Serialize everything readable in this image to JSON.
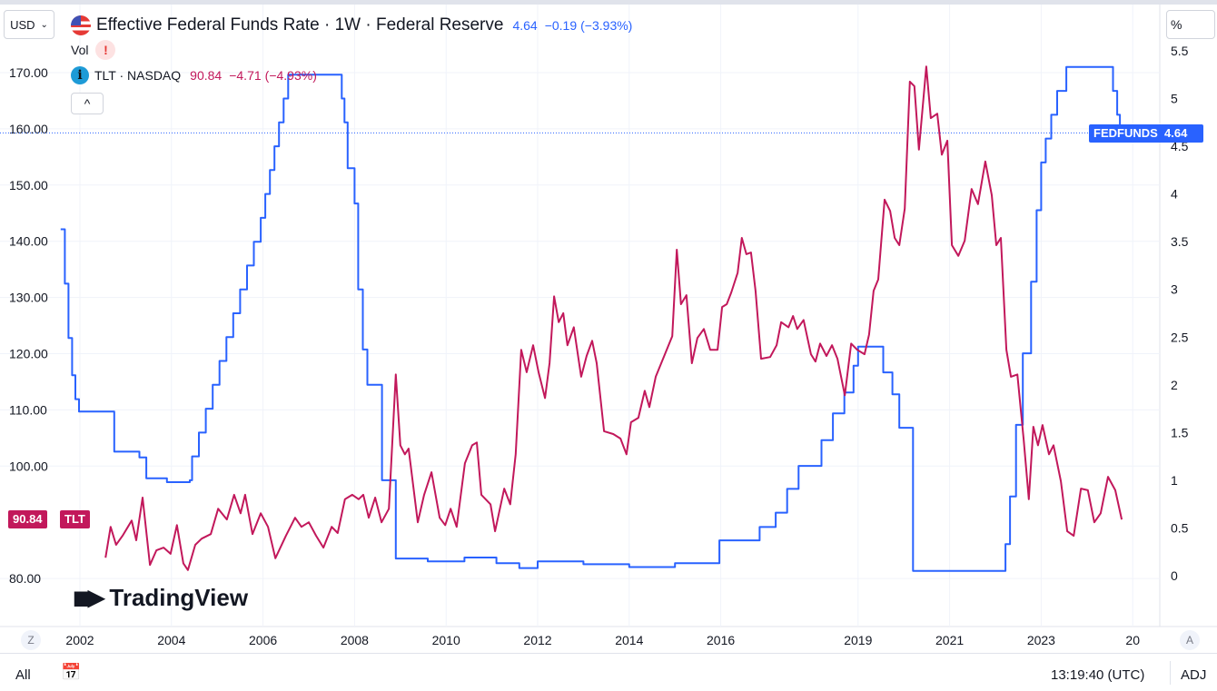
{
  "header": {
    "currency": "USD",
    "title": "Effective Federal Funds Rate · 1W · Federal Reserve",
    "value": "4.64",
    "change": "−0.19",
    "change_pct": "(−3.93%)",
    "vol_label": "Vol",
    "vol_warning": "!",
    "tlt_label": "TLT · NASDAQ",
    "tlt_value": "90.84",
    "tlt_change": "−4.71",
    "tlt_change_pct": "(−4.93%)",
    "collapse": "^",
    "info": "i",
    "scale_mode": "%"
  },
  "tags": {
    "fed_name": "FEDFUNDS",
    "fed_value": "4.64",
    "tlt_name": "TLT",
    "tlt_value": "90.84"
  },
  "watermark": "TradingView",
  "bottom": {
    "range": "All",
    "time": "13:19:40 (UTC)",
    "adj": "ADJ",
    "z": "Z",
    "a": "A"
  },
  "colors": {
    "fedfunds": "#2962ff",
    "tlt": "#c2185b"
  },
  "chart_data": {
    "type": "line",
    "x_ticks": [
      "2002",
      "2004",
      "2006",
      "2008",
      "2010",
      "2012",
      "2014",
      "2016",
      "2019",
      "2021",
      "2023",
      "20"
    ],
    "left_axis": {
      "ticks": [
        "170.00",
        "160.00",
        "150.00",
        "140.00",
        "130.00",
        "120.00",
        "110.00",
        "100.00",
        "80.00"
      ],
      "range": [
        75,
        177
      ]
    },
    "right_axis": {
      "ticks": [
        "5.5",
        "5",
        "4.5",
        "4",
        "3.5",
        "3",
        "2.5",
        "2",
        "1.5",
        "1",
        "0.5",
        "0"
      ],
      "range": [
        -0.5,
        5.8
      ]
    },
    "grid": true,
    "series": [
      {
        "name": "FEDFUNDS",
        "axis": "right",
        "step": true,
        "points": [
          [
            2001.58,
            3.63
          ],
          [
            2001.67,
            3.06
          ],
          [
            2001.75,
            2.49
          ],
          [
            2001.83,
            2.1
          ],
          [
            2001.9,
            1.85
          ],
          [
            2001.98,
            1.72
          ],
          [
            2002.75,
            1.3
          ],
          [
            2003.3,
            1.24
          ],
          [
            2003.45,
            1.02
          ],
          [
            2003.9,
            0.98
          ],
          [
            2004.4,
            1.0
          ],
          [
            2004.45,
            1.25
          ],
          [
            2004.6,
            1.5
          ],
          [
            2004.75,
            1.75
          ],
          [
            2004.9,
            2.0
          ],
          [
            2005.05,
            2.25
          ],
          [
            2005.2,
            2.5
          ],
          [
            2005.35,
            2.75
          ],
          [
            2005.5,
            3.0
          ],
          [
            2005.65,
            3.25
          ],
          [
            2005.8,
            3.5
          ],
          [
            2005.95,
            3.75
          ],
          [
            2006.05,
            4.0
          ],
          [
            2006.15,
            4.25
          ],
          [
            2006.25,
            4.5
          ],
          [
            2006.35,
            4.75
          ],
          [
            2006.45,
            5.0
          ],
          [
            2006.55,
            5.25
          ],
          [
            2007.72,
            5.0
          ],
          [
            2007.78,
            4.75
          ],
          [
            2007.85,
            4.27
          ],
          [
            2008.0,
            3.9
          ],
          [
            2008.08,
            3.0
          ],
          [
            2008.18,
            2.37
          ],
          [
            2008.28,
            2.0
          ],
          [
            2008.6,
            1.0
          ],
          [
            2008.9,
            0.18
          ],
          [
            2009.6,
            0.15
          ],
          [
            2010.4,
            0.19
          ],
          [
            2011.1,
            0.13
          ],
          [
            2011.6,
            0.08
          ],
          [
            2012.0,
            0.15
          ],
          [
            2013.0,
            0.12
          ],
          [
            2014.0,
            0.09
          ],
          [
            2015.0,
            0.13
          ],
          [
            2015.97,
            0.37
          ],
          [
            2016.85,
            0.51
          ],
          [
            2017.2,
            0.66
          ],
          [
            2017.45,
            0.91
          ],
          [
            2017.7,
            1.15
          ],
          [
            2018.2,
            1.42
          ],
          [
            2018.45,
            1.7
          ],
          [
            2018.7,
            1.92
          ],
          [
            2018.9,
            2.2
          ],
          [
            2019.0,
            2.4
          ],
          [
            2019.55,
            2.13
          ],
          [
            2019.75,
            1.9
          ],
          [
            2019.9,
            1.55
          ],
          [
            2020.2,
            0.05
          ],
          [
            2022.22,
            0.33
          ],
          [
            2022.32,
            0.83
          ],
          [
            2022.45,
            1.58
          ],
          [
            2022.6,
            2.33
          ],
          [
            2022.78,
            3.08
          ],
          [
            2022.9,
            3.83
          ],
          [
            2023.0,
            4.33
          ],
          [
            2023.1,
            4.58
          ],
          [
            2023.22,
            4.83
          ],
          [
            2023.35,
            5.08
          ],
          [
            2023.55,
            5.33
          ],
          [
            2024.57,
            5.08
          ],
          [
            2024.66,
            4.83
          ],
          [
            2024.72,
            4.64
          ],
          [
            2024.76,
            4.64
          ]
        ]
      },
      {
        "name": "TLT",
        "axis": "left",
        "step": false,
        "points": [
          [
            2002.56,
            83.7
          ],
          [
            2002.67,
            89.2
          ],
          [
            2002.79,
            86
          ],
          [
            2002.93,
            87.6
          ],
          [
            2003.13,
            90.3
          ],
          [
            2003.23,
            86.8
          ],
          [
            2003.37,
            94.4
          ],
          [
            2003.53,
            82.4
          ],
          [
            2003.67,
            85
          ],
          [
            2003.83,
            85.5
          ],
          [
            2003.98,
            84.4
          ],
          [
            2004.12,
            89.5
          ],
          [
            2004.26,
            82.7
          ],
          [
            2004.36,
            81.5
          ],
          [
            2004.52,
            86
          ],
          [
            2004.66,
            87.1
          ],
          [
            2004.86,
            87.9
          ],
          [
            2005.02,
            92.4
          ],
          [
            2005.21,
            90.5
          ],
          [
            2005.37,
            94.9
          ],
          [
            2005.51,
            91.6
          ],
          [
            2005.61,
            94.9
          ],
          [
            2005.77,
            87.9
          ],
          [
            2005.95,
            91.6
          ],
          [
            2006.11,
            89.2
          ],
          [
            2006.27,
            83.6
          ],
          [
            2006.5,
            87.6
          ],
          [
            2006.7,
            90.8
          ],
          [
            2006.84,
            89.2
          ],
          [
            2007.0,
            90
          ],
          [
            2007.16,
            87.6
          ],
          [
            2007.32,
            85.5
          ],
          [
            2007.5,
            89.2
          ],
          [
            2007.63,
            88.1
          ],
          [
            2007.79,
            94.1
          ],
          [
            2007.95,
            94.9
          ],
          [
            2008.09,
            94.1
          ],
          [
            2008.19,
            94.9
          ],
          [
            2008.31,
            90.8
          ],
          [
            2008.45,
            94.4
          ],
          [
            2008.59,
            90
          ],
          [
            2008.75,
            92.4
          ],
          [
            2008.9,
            116.3
          ],
          [
            2009.0,
            103.7
          ],
          [
            2009.1,
            102.1
          ],
          [
            2009.18,
            103.1
          ],
          [
            2009.38,
            90
          ],
          [
            2009.52,
            94.9
          ],
          [
            2009.68,
            98.9
          ],
          [
            2009.86,
            90.8
          ],
          [
            2009.98,
            89.5
          ],
          [
            2010.1,
            92.4
          ],
          [
            2010.23,
            89.2
          ],
          [
            2010.41,
            100.5
          ],
          [
            2010.57,
            103.7
          ],
          [
            2010.67,
            104.2
          ],
          [
            2010.77,
            94.9
          ],
          [
            2010.97,
            93.2
          ],
          [
            2011.07,
            88.4
          ],
          [
            2011.27,
            96
          ],
          [
            2011.4,
            93.2
          ],
          [
            2011.52,
            102.1
          ],
          [
            2011.64,
            120.7
          ],
          [
            2011.76,
            116.7
          ],
          [
            2011.9,
            121.5
          ],
          [
            2012.02,
            116.7
          ],
          [
            2012.16,
            112.1
          ],
          [
            2012.26,
            118.3
          ],
          [
            2012.36,
            130.2
          ],
          [
            2012.46,
            125.6
          ],
          [
            2012.56,
            127.2
          ],
          [
            2012.65,
            121.5
          ],
          [
            2012.79,
            124.7
          ],
          [
            2012.95,
            115.9
          ],
          [
            2013.07,
            119.6
          ],
          [
            2013.19,
            122.3
          ],
          [
            2013.29,
            118.3
          ],
          [
            2013.45,
            106.2
          ],
          [
            2013.65,
            105.7
          ],
          [
            2013.81,
            104.9
          ],
          [
            2013.94,
            102.1
          ],
          [
            2014.04,
            107.8
          ],
          [
            2014.2,
            108.6
          ],
          [
            2014.34,
            113.4
          ],
          [
            2014.44,
            110.5
          ],
          [
            2014.58,
            115.9
          ],
          [
            2014.78,
            119.9
          ],
          [
            2014.94,
            123.1
          ],
          [
            2015.04,
            138.5
          ],
          [
            2015.13,
            128.8
          ],
          [
            2015.25,
            130.4
          ],
          [
            2015.37,
            118.3
          ],
          [
            2015.49,
            122.8
          ],
          [
            2015.63,
            124.4
          ],
          [
            2015.77,
            120.7
          ],
          [
            2015.93,
            120.7
          ],
          [
            2016.03,
            128.3
          ],
          [
            2016.13,
            128.8
          ],
          [
            2016.23,
            130.9
          ],
          [
            2016.37,
            134.4
          ],
          [
            2016.46,
            140.6
          ],
          [
            2016.56,
            137.7
          ],
          [
            2016.66,
            138
          ],
          [
            2016.76,
            131.2
          ],
          [
            2016.88,
            119.1
          ],
          [
            2017.08,
            119.4
          ],
          [
            2017.22,
            121.5
          ],
          [
            2017.32,
            125.6
          ],
          [
            2017.48,
            124.7
          ],
          [
            2017.58,
            126.7
          ],
          [
            2017.67,
            124.4
          ],
          [
            2017.81,
            126
          ],
          [
            2017.97,
            119.9
          ],
          [
            2018.07,
            118.6
          ],
          [
            2018.17,
            121.8
          ],
          [
            2018.31,
            119.6
          ],
          [
            2018.43,
            121.5
          ],
          [
            2018.55,
            119.1
          ],
          [
            2018.71,
            112.6
          ],
          [
            2018.85,
            121.8
          ],
          [
            2018.98,
            120.7
          ],
          [
            2019.14,
            119.9
          ],
          [
            2019.24,
            123.4
          ],
          [
            2019.34,
            131.2
          ],
          [
            2019.44,
            133.2
          ],
          [
            2019.58,
            147.4
          ],
          [
            2019.7,
            145.4
          ],
          [
            2019.8,
            140.6
          ],
          [
            2019.9,
            139.3
          ],
          [
            2020.02,
            145.8
          ],
          [
            2020.13,
            168.4
          ],
          [
            2020.23,
            167.6
          ],
          [
            2020.33,
            156.3
          ],
          [
            2020.49,
            171.1
          ],
          [
            2020.59,
            161.9
          ],
          [
            2020.73,
            162.7
          ],
          [
            2020.83,
            155.4
          ],
          [
            2020.95,
            157.9
          ],
          [
            2021.05,
            139.3
          ],
          [
            2021.19,
            137.4
          ],
          [
            2021.33,
            140.1
          ],
          [
            2021.48,
            149.3
          ],
          [
            2021.62,
            146.6
          ],
          [
            2021.78,
            154.2
          ],
          [
            2021.92,
            148.2
          ],
          [
            2022.02,
            139.3
          ],
          [
            2022.12,
            140.6
          ],
          [
            2022.24,
            120.7
          ],
          [
            2022.34,
            115.9
          ],
          [
            2022.48,
            116.3
          ],
          [
            2022.62,
            104.6
          ],
          [
            2022.73,
            94.1
          ],
          [
            2022.83,
            107
          ],
          [
            2022.93,
            103.7
          ],
          [
            2023.03,
            107.3
          ],
          [
            2023.17,
            102.1
          ],
          [
            2023.27,
            103.7
          ],
          [
            2023.43,
            97.3
          ],
          [
            2023.57,
            88.4
          ],
          [
            2023.71,
            87.6
          ],
          [
            2023.87,
            96
          ],
          [
            2024.02,
            95.7
          ],
          [
            2024.16,
            90
          ],
          [
            2024.3,
            91.6
          ],
          [
            2024.46,
            98.1
          ],
          [
            2024.62,
            95.7
          ],
          [
            2024.76,
            90.5
          ]
        ]
      }
    ]
  }
}
